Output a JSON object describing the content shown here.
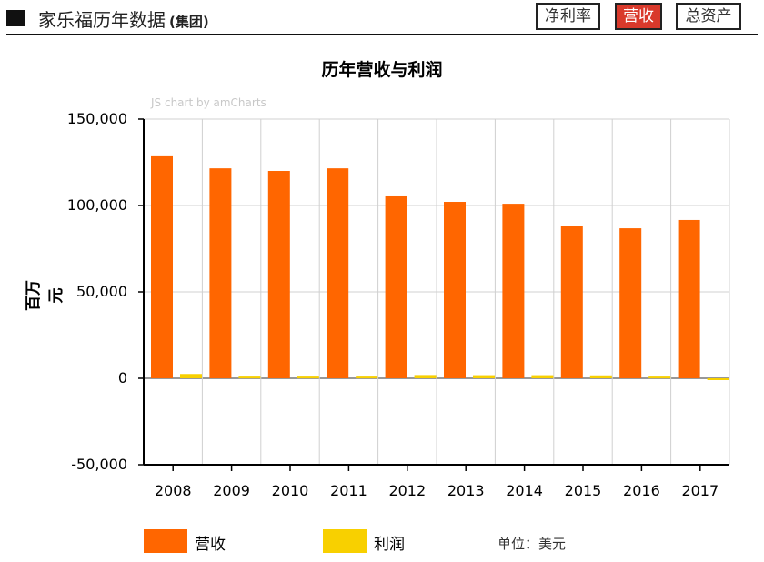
{
  "header": {
    "title": "家乐福历年数据",
    "subtitle": "(集团)",
    "tabs": [
      {
        "label": "净利率",
        "active": false
      },
      {
        "label": "营收",
        "active": true
      },
      {
        "label": "总资产",
        "active": false
      }
    ]
  },
  "watermark": "JS chart by amCharts",
  "unit_note": "单位：美元",
  "colors": {
    "revenue": "#ff6600",
    "profit": "#f8d000",
    "active_tab": "#d9392b"
  },
  "chart_data": {
    "type": "bar",
    "title": "历年营收与利润",
    "xlabel": "",
    "ylabel": "百万元",
    "ylim": [
      -50000,
      150000
    ],
    "yticks": [
      "150,000",
      "100,000",
      "50,000",
      "0",
      "-50,000"
    ],
    "yticks_values": [
      150000,
      100000,
      50000,
      0,
      -50000
    ],
    "grid": true,
    "legend_position": "bottom",
    "categories": [
      "2008",
      "2009",
      "2010",
      "2011",
      "2012",
      "2013",
      "2014",
      "2015",
      "2016",
      "2017"
    ],
    "series": [
      {
        "name": "营收",
        "color": "#ff6600",
        "values": [
          129000,
          121500,
          120000,
          121500,
          105800,
          102100,
          101000,
          87900,
          86800,
          91600
        ]
      },
      {
        "name": "利润",
        "color": "#f8d000",
        "values": [
          2500,
          1000,
          1000,
          1000,
          1900,
          1800,
          1800,
          1700,
          1000,
          -600
        ]
      }
    ]
  }
}
